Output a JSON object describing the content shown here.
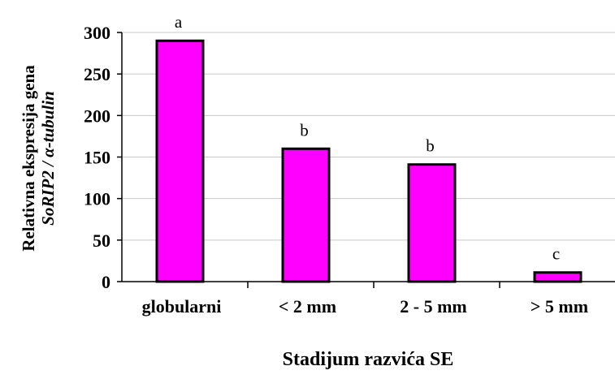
{
  "chart_data": {
    "type": "bar",
    "categories": [
      "globularni",
      "< 2 mm",
      "2 - 5 mm",
      "> 5 mm"
    ],
    "values": [
      290,
      160,
      141,
      11
    ],
    "data_labels": [
      "a",
      "b",
      "b",
      "c"
    ],
    "ylabel_line1": "Relativna ekspresija gena",
    "ylabel_line2": "SoRIP2 / α-tubulin",
    "xlabel": "Stadijum razvića SE",
    "ylim": [
      0,
      300
    ],
    "yticks": [
      0,
      50,
      100,
      150,
      200,
      250,
      300
    ],
    "grid": true,
    "bar_color": "#ff00ff",
    "bar_stroke": "#000000",
    "grid_color": "#c8c8c8"
  }
}
